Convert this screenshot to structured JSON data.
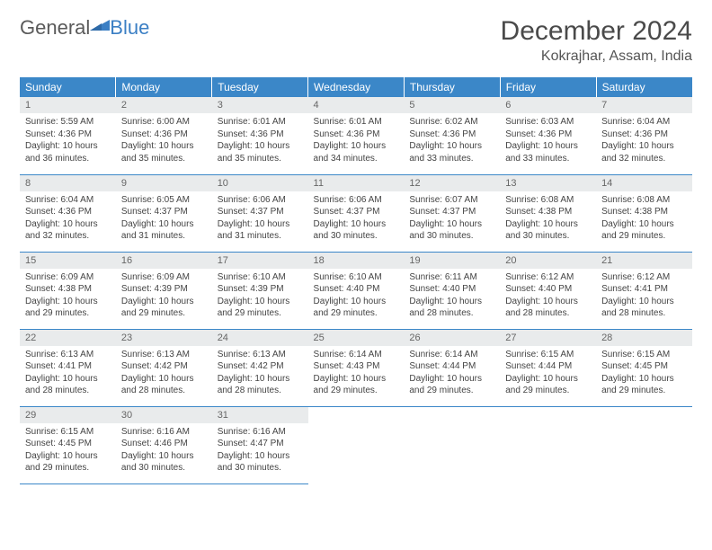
{
  "logo": {
    "general": "General",
    "blue": "Blue"
  },
  "title": "December 2024",
  "location": "Kokrajhar, Assam, India",
  "colors": {
    "header_bg": "#3b87c8",
    "header_text": "#ffffff",
    "daynum_bg": "#e9ebec",
    "border": "#3b87c8",
    "logo_gray": "#5a5a5a",
    "logo_blue": "#3b7fc4"
  },
  "day_labels": [
    "Sunday",
    "Monday",
    "Tuesday",
    "Wednesday",
    "Thursday",
    "Friday",
    "Saturday"
  ],
  "weeks": [
    [
      {
        "n": "1",
        "sr": "Sunrise: 5:59 AM",
        "ss": "Sunset: 4:36 PM",
        "dl": "Daylight: 10 hours and 36 minutes."
      },
      {
        "n": "2",
        "sr": "Sunrise: 6:00 AM",
        "ss": "Sunset: 4:36 PM",
        "dl": "Daylight: 10 hours and 35 minutes."
      },
      {
        "n": "3",
        "sr": "Sunrise: 6:01 AM",
        "ss": "Sunset: 4:36 PM",
        "dl": "Daylight: 10 hours and 35 minutes."
      },
      {
        "n": "4",
        "sr": "Sunrise: 6:01 AM",
        "ss": "Sunset: 4:36 PM",
        "dl": "Daylight: 10 hours and 34 minutes."
      },
      {
        "n": "5",
        "sr": "Sunrise: 6:02 AM",
        "ss": "Sunset: 4:36 PM",
        "dl": "Daylight: 10 hours and 33 minutes."
      },
      {
        "n": "6",
        "sr": "Sunrise: 6:03 AM",
        "ss": "Sunset: 4:36 PM",
        "dl": "Daylight: 10 hours and 33 minutes."
      },
      {
        "n": "7",
        "sr": "Sunrise: 6:04 AM",
        "ss": "Sunset: 4:36 PM",
        "dl": "Daylight: 10 hours and 32 minutes."
      }
    ],
    [
      {
        "n": "8",
        "sr": "Sunrise: 6:04 AM",
        "ss": "Sunset: 4:36 PM",
        "dl": "Daylight: 10 hours and 32 minutes."
      },
      {
        "n": "9",
        "sr": "Sunrise: 6:05 AM",
        "ss": "Sunset: 4:37 PM",
        "dl": "Daylight: 10 hours and 31 minutes."
      },
      {
        "n": "10",
        "sr": "Sunrise: 6:06 AM",
        "ss": "Sunset: 4:37 PM",
        "dl": "Daylight: 10 hours and 31 minutes."
      },
      {
        "n": "11",
        "sr": "Sunrise: 6:06 AM",
        "ss": "Sunset: 4:37 PM",
        "dl": "Daylight: 10 hours and 30 minutes."
      },
      {
        "n": "12",
        "sr": "Sunrise: 6:07 AM",
        "ss": "Sunset: 4:37 PM",
        "dl": "Daylight: 10 hours and 30 minutes."
      },
      {
        "n": "13",
        "sr": "Sunrise: 6:08 AM",
        "ss": "Sunset: 4:38 PM",
        "dl": "Daylight: 10 hours and 30 minutes."
      },
      {
        "n": "14",
        "sr": "Sunrise: 6:08 AM",
        "ss": "Sunset: 4:38 PM",
        "dl": "Daylight: 10 hours and 29 minutes."
      }
    ],
    [
      {
        "n": "15",
        "sr": "Sunrise: 6:09 AM",
        "ss": "Sunset: 4:38 PM",
        "dl": "Daylight: 10 hours and 29 minutes."
      },
      {
        "n": "16",
        "sr": "Sunrise: 6:09 AM",
        "ss": "Sunset: 4:39 PM",
        "dl": "Daylight: 10 hours and 29 minutes."
      },
      {
        "n": "17",
        "sr": "Sunrise: 6:10 AM",
        "ss": "Sunset: 4:39 PM",
        "dl": "Daylight: 10 hours and 29 minutes."
      },
      {
        "n": "18",
        "sr": "Sunrise: 6:10 AM",
        "ss": "Sunset: 4:40 PM",
        "dl": "Daylight: 10 hours and 29 minutes."
      },
      {
        "n": "19",
        "sr": "Sunrise: 6:11 AM",
        "ss": "Sunset: 4:40 PM",
        "dl": "Daylight: 10 hours and 28 minutes."
      },
      {
        "n": "20",
        "sr": "Sunrise: 6:12 AM",
        "ss": "Sunset: 4:40 PM",
        "dl": "Daylight: 10 hours and 28 minutes."
      },
      {
        "n": "21",
        "sr": "Sunrise: 6:12 AM",
        "ss": "Sunset: 4:41 PM",
        "dl": "Daylight: 10 hours and 28 minutes."
      }
    ],
    [
      {
        "n": "22",
        "sr": "Sunrise: 6:13 AM",
        "ss": "Sunset: 4:41 PM",
        "dl": "Daylight: 10 hours and 28 minutes."
      },
      {
        "n": "23",
        "sr": "Sunrise: 6:13 AM",
        "ss": "Sunset: 4:42 PM",
        "dl": "Daylight: 10 hours and 28 minutes."
      },
      {
        "n": "24",
        "sr": "Sunrise: 6:13 AM",
        "ss": "Sunset: 4:42 PM",
        "dl": "Daylight: 10 hours and 28 minutes."
      },
      {
        "n": "25",
        "sr": "Sunrise: 6:14 AM",
        "ss": "Sunset: 4:43 PM",
        "dl": "Daylight: 10 hours and 29 minutes."
      },
      {
        "n": "26",
        "sr": "Sunrise: 6:14 AM",
        "ss": "Sunset: 4:44 PM",
        "dl": "Daylight: 10 hours and 29 minutes."
      },
      {
        "n": "27",
        "sr": "Sunrise: 6:15 AM",
        "ss": "Sunset: 4:44 PM",
        "dl": "Daylight: 10 hours and 29 minutes."
      },
      {
        "n": "28",
        "sr": "Sunrise: 6:15 AM",
        "ss": "Sunset: 4:45 PM",
        "dl": "Daylight: 10 hours and 29 minutes."
      }
    ],
    [
      {
        "n": "29",
        "sr": "Sunrise: 6:15 AM",
        "ss": "Sunset: 4:45 PM",
        "dl": "Daylight: 10 hours and 29 minutes."
      },
      {
        "n": "30",
        "sr": "Sunrise: 6:16 AM",
        "ss": "Sunset: 4:46 PM",
        "dl": "Daylight: 10 hours and 30 minutes."
      },
      {
        "n": "31",
        "sr": "Sunrise: 6:16 AM",
        "ss": "Sunset: 4:47 PM",
        "dl": "Daylight: 10 hours and 30 minutes."
      },
      null,
      null,
      null,
      null
    ]
  ]
}
